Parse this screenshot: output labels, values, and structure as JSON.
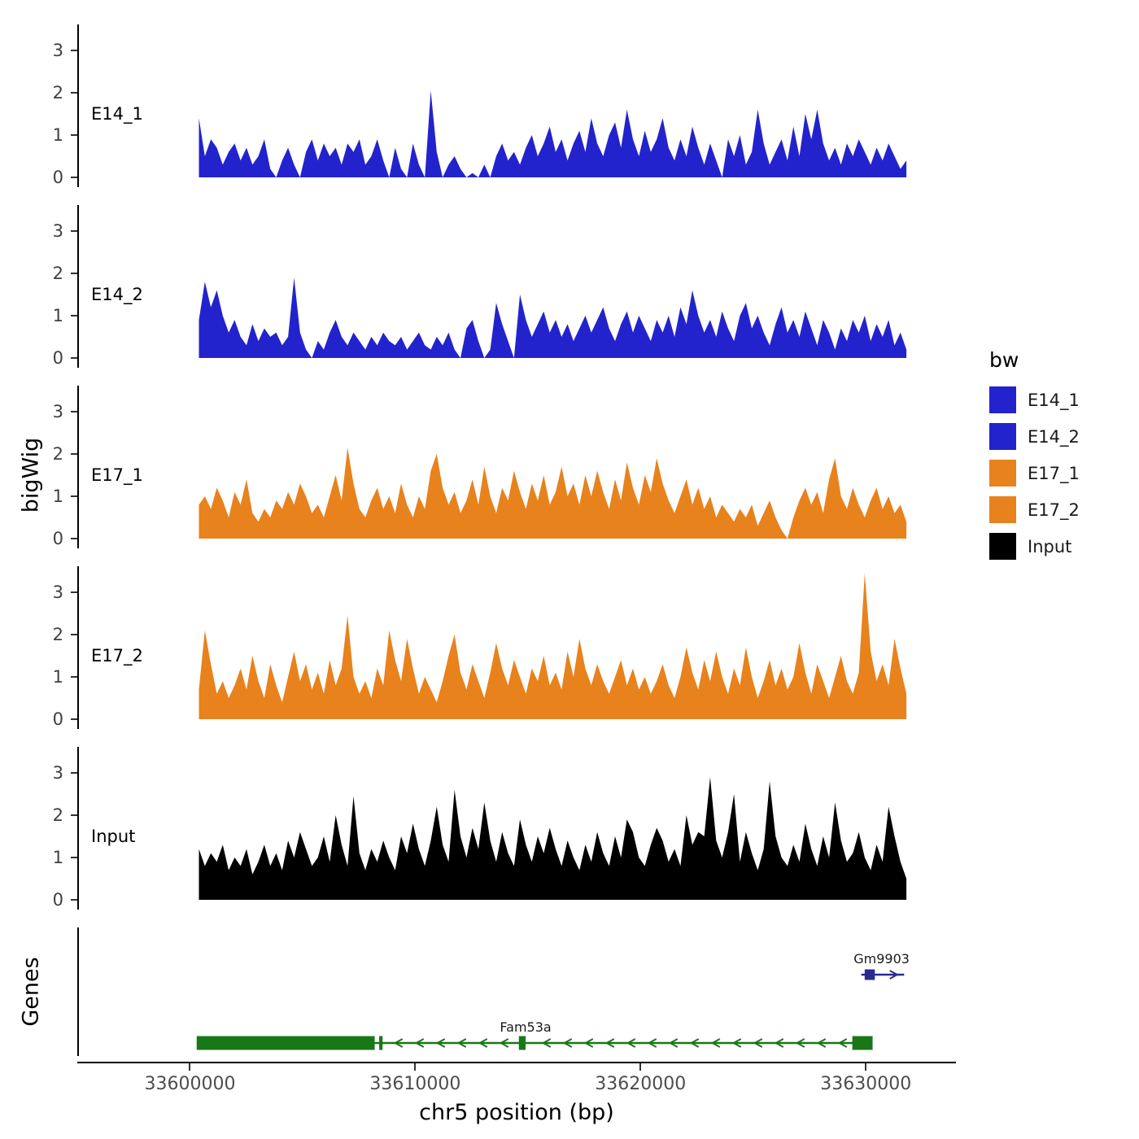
{
  "figure": {
    "y_axis_label": "bigWig",
    "genes_axis_label": "Genes",
    "x_axis_label": "chr5 position (bp)"
  },
  "legend": {
    "title": "bw",
    "items": [
      {
        "label": "E14_1",
        "color": "#2323CD"
      },
      {
        "label": "E14_2",
        "color": "#2323CD"
      },
      {
        "label": "E17_1",
        "color": "#E8821D"
      },
      {
        "label": "E17_2",
        "color": "#E8821D"
      },
      {
        "label": "Input",
        "color": "#000000"
      }
    ]
  },
  "chart_data": {
    "type": "area",
    "title": "",
    "xlabel": "chr5 position (bp)",
    "ylabel": "bigWig",
    "x_range_bp": [
      33595000,
      33634000
    ],
    "x_ticks": [
      33600000,
      33610000,
      33620000,
      33630000
    ],
    "x_tick_labels": [
      "33600000",
      "33610000",
      "33620000",
      "33630000"
    ],
    "y_ticks": [
      0,
      1,
      2,
      3
    ],
    "ylim": [
      0,
      3.5
    ],
    "grid": false,
    "legend_position": "right",
    "tracks": [
      {
        "name": "E14_1",
        "color": "#2323CD",
        "x_start": 33600400,
        "x_end": 33631800,
        "values": [
          1.4,
          0.5,
          0.9,
          0.7,
          0.3,
          0.6,
          0.8,
          0.4,
          0.7,
          0.3,
          0.5,
          0.9,
          0.2,
          0,
          0.4,
          0.7,
          0.3,
          0,
          0.6,
          0.9,
          0.4,
          0.8,
          0.5,
          0.7,
          0.3,
          0.8,
          0.6,
          0.9,
          0.3,
          0.5,
          0.9,
          0.4,
          0,
          0.7,
          0.2,
          0,
          0.8,
          0.3,
          0,
          2.05,
          0.6,
          0,
          0.3,
          0.5,
          0.2,
          0,
          0.1,
          0,
          0.3,
          0,
          0.5,
          0.8,
          0.4,
          0.6,
          0.3,
          0.7,
          1.0,
          0.5,
          0.8,
          1.2,
          0.6,
          0.9,
          0.4,
          0.8,
          1.1,
          0.6,
          1.4,
          0.8,
          0.5,
          1.0,
          1.3,
          0.7,
          1.6,
          0.9,
          0.5,
          1.1,
          0.6,
          0.9,
          1.4,
          0.7,
          0.4,
          0.9,
          0.5,
          1.2,
          0.7,
          0.3,
          0.8,
          0.4,
          0,
          0.9,
          0.5,
          1.0,
          0.3,
          0.6,
          1.6,
          0.8,
          0.3,
          0.6,
          0.9,
          0.4,
          1.2,
          0.5,
          1.5,
          0.9,
          1.6,
          0.8,
          0.4,
          0.7,
          0.3,
          0.8,
          0.5,
          0.9,
          0.6,
          0.3,
          0.7,
          0.4,
          0.8,
          0.5,
          0.2,
          0.4
        ]
      },
      {
        "name": "E14_2",
        "color": "#2323CD",
        "x_start": 33600400,
        "x_end": 33631800,
        "values": [
          0.9,
          1.8,
          1.2,
          1.6,
          1.0,
          0.6,
          0.9,
          0.5,
          0.3,
          0.8,
          0.4,
          0.7,
          0.5,
          0.6,
          0.3,
          0.5,
          1.9,
          0.6,
          0.2,
          0,
          0.4,
          0.2,
          0.6,
          0.9,
          0.5,
          0.3,
          0.6,
          0.4,
          0.2,
          0.5,
          0.3,
          0.6,
          0.4,
          0.3,
          0.5,
          0.2,
          0.4,
          0.6,
          0.3,
          0.2,
          0.5,
          0.3,
          0.6,
          0.2,
          0,
          0.7,
          0.9,
          0.4,
          0,
          0.2,
          1.3,
          0.8,
          0.4,
          0,
          1.5,
          0.9,
          0.5,
          0.8,
          1.1,
          0.6,
          0.9,
          0.5,
          0.8,
          0.4,
          0.7,
          1.0,
          0.6,
          0.9,
          1.2,
          0.7,
          0.4,
          0.8,
          1.1,
          0.6,
          1.0,
          0.7,
          0.4,
          0.9,
          0.6,
          1.0,
          0.5,
          1.2,
          0.8,
          1.6,
          1.0,
          0.6,
          0.9,
          0.5,
          1.1,
          0.7,
          0.4,
          1.0,
          1.3,
          0.7,
          1.0,
          0.6,
          0.3,
          0.8,
          1.2,
          0.6,
          0.9,
          0.5,
          1.1,
          0.7,
          0.3,
          0.9,
          0.6,
          0.2,
          0.7,
          0.4,
          0.9,
          0.6,
          1.0,
          0.4,
          0.8,
          0.5,
          0.9,
          0.3,
          0.6,
          0.2
        ]
      },
      {
        "name": "E17_1",
        "color": "#E8821D",
        "x_start": 33600400,
        "x_end": 33631800,
        "values": [
          0.8,
          1.0,
          0.7,
          1.2,
          0.9,
          0.5,
          1.1,
          0.8,
          1.4,
          0.6,
          0.4,
          0.7,
          0.5,
          0.9,
          0.7,
          1.1,
          0.8,
          1.3,
          1.0,
          0.6,
          0.8,
          0.5,
          1.0,
          1.5,
          0.9,
          2.15,
          1.3,
          0.7,
          0.5,
          0.9,
          1.2,
          0.7,
          1.0,
          0.6,
          1.3,
          0.8,
          0.5,
          1.0,
          0.7,
          1.6,
          2.0,
          1.2,
          0.8,
          1.1,
          0.6,
          0.9,
          1.4,
          0.8,
          1.7,
          1.0,
          0.6,
          1.2,
          0.9,
          1.6,
          1.1,
          0.7,
          1.3,
          0.9,
          1.5,
          0.8,
          1.1,
          1.7,
          1.0,
          1.3,
          0.8,
          1.5,
          1.0,
          1.6,
          1.1,
          0.7,
          1.4,
          0.9,
          1.8,
          1.2,
          0.8,
          1.5,
          1.1,
          1.9,
          1.3,
          0.9,
          0.6,
          1.0,
          1.4,
          0.8,
          1.2,
          0.7,
          1.0,
          0.5,
          0.8,
          0.6,
          0.4,
          0.7,
          0.5,
          0.8,
          0.3,
          0.6,
          0.9,
          0.5,
          0.2,
          0,
          0.5,
          0.9,
          1.2,
          0.8,
          1.1,
          0.6,
          1.4,
          1.9,
          1.0,
          0.7,
          1.2,
          0.8,
          0.5,
          0.9,
          1.2,
          0.7,
          1.0,
          0.6,
          0.8,
          0.4
        ]
      },
      {
        "name": "E17_2",
        "color": "#E8821D",
        "x_start": 33600400,
        "x_end": 33631800,
        "values": [
          0.7,
          2.1,
          1.3,
          0.6,
          0.9,
          0.5,
          0.8,
          1.2,
          0.7,
          1.5,
          0.9,
          0.5,
          1.3,
          0.8,
          0.4,
          1.0,
          1.6,
          0.9,
          1.3,
          0.7,
          1.1,
          0.6,
          1.4,
          0.8,
          1.2,
          2.45,
          1.0,
          0.6,
          0.9,
          0.5,
          1.2,
          0.8,
          2.1,
          1.4,
          0.9,
          1.9,
          1.2,
          0.6,
          1.0,
          0.7,
          0.4,
          0.9,
          1.5,
          2.0,
          1.1,
          0.7,
          1.3,
          0.9,
          0.5,
          1.1,
          1.8,
          1.2,
          0.8,
          1.4,
          1.0,
          0.6,
          1.2,
          0.9,
          1.5,
          0.8,
          1.1,
          0.7,
          1.6,
          1.0,
          1.9,
          1.2,
          0.8,
          1.3,
          0.9,
          0.6,
          1.0,
          1.4,
          0.8,
          1.2,
          0.7,
          1.0,
          0.6,
          0.9,
          1.3,
          0.8,
          0.5,
          1.0,
          1.7,
          1.1,
          0.7,
          1.4,
          0.9,
          1.6,
          1.0,
          0.6,
          1.2,
          0.8,
          1.7,
          1.0,
          0.5,
          0.9,
          1.4,
          0.8,
          1.2,
          0.7,
          1.0,
          1.8,
          1.1,
          0.6,
          1.3,
          0.9,
          0.5,
          1.0,
          1.5,
          0.9,
          0.6,
          1.1,
          3.45,
          1.6,
          0.9,
          1.3,
          0.8,
          1.9,
          1.2,
          0.6
        ]
      },
      {
        "name": "Input",
        "color": "#000000",
        "x_start": 33600400,
        "x_end": 33631800,
        "values": [
          1.2,
          0.8,
          1.1,
          0.9,
          1.3,
          0.7,
          1.0,
          0.8,
          1.2,
          0.6,
          0.9,
          1.3,
          0.8,
          1.1,
          0.7,
          1.4,
          1.0,
          1.6,
          1.2,
          0.8,
          1.0,
          1.5,
          0.9,
          2.0,
          1.3,
          0.8,
          2.45,
          1.1,
          0.7,
          1.2,
          0.9,
          1.4,
          1.0,
          0.7,
          1.5,
          1.1,
          1.8,
          1.2,
          0.8,
          1.4,
          2.2,
          1.3,
          0.9,
          2.6,
          1.5,
          1.0,
          1.7,
          1.2,
          2.3,
          1.4,
          0.9,
          1.6,
          1.1,
          0.8,
          1.9,
          1.3,
          0.9,
          1.5,
          1.1,
          1.7,
          1.2,
          0.8,
          1.4,
          1.0,
          0.7,
          1.3,
          0.9,
          1.6,
          1.1,
          0.8,
          1.5,
          1.0,
          1.9,
          1.6,
          1.0,
          0.8,
          1.3,
          1.7,
          1.4,
          0.9,
          1.2,
          0.8,
          2.0,
          1.3,
          1.6,
          1.5,
          2.9,
          1.4,
          1.0,
          1.6,
          2.5,
          0.9,
          1.6,
          1.1,
          0.7,
          1.2,
          2.8,
          1.5,
          1.0,
          0.8,
          1.3,
          0.9,
          1.8,
          1.2,
          0.8,
          1.5,
          1.0,
          2.3,
          1.4,
          0.9,
          1.1,
          1.6,
          1.0,
          0.7,
          1.3,
          0.9,
          2.2,
          1.5,
          0.9,
          0.5
        ]
      }
    ],
    "genes": [
      {
        "name": "Fam53a",
        "color": "#187818",
        "strand": "-",
        "row": "bottom",
        "label_x": 33614900,
        "line_start": 33600300,
        "line_end": 33630300,
        "exons": [
          {
            "start": 33600300,
            "end": 33608200
          },
          {
            "start": 33608400,
            "end": 33608550
          },
          {
            "start": 33614600,
            "end": 33614900
          },
          {
            "start": 33629400,
            "end": 33630300
          }
        ]
      },
      {
        "name": "Gm9903",
        "color": "#2A2A8F",
        "strand": "+",
        "row": "top",
        "label_x": 33630700,
        "line_start": 33629800,
        "line_end": 33631700,
        "exons": [
          {
            "start": 33629950,
            "end": 33630400
          }
        ]
      }
    ]
  }
}
